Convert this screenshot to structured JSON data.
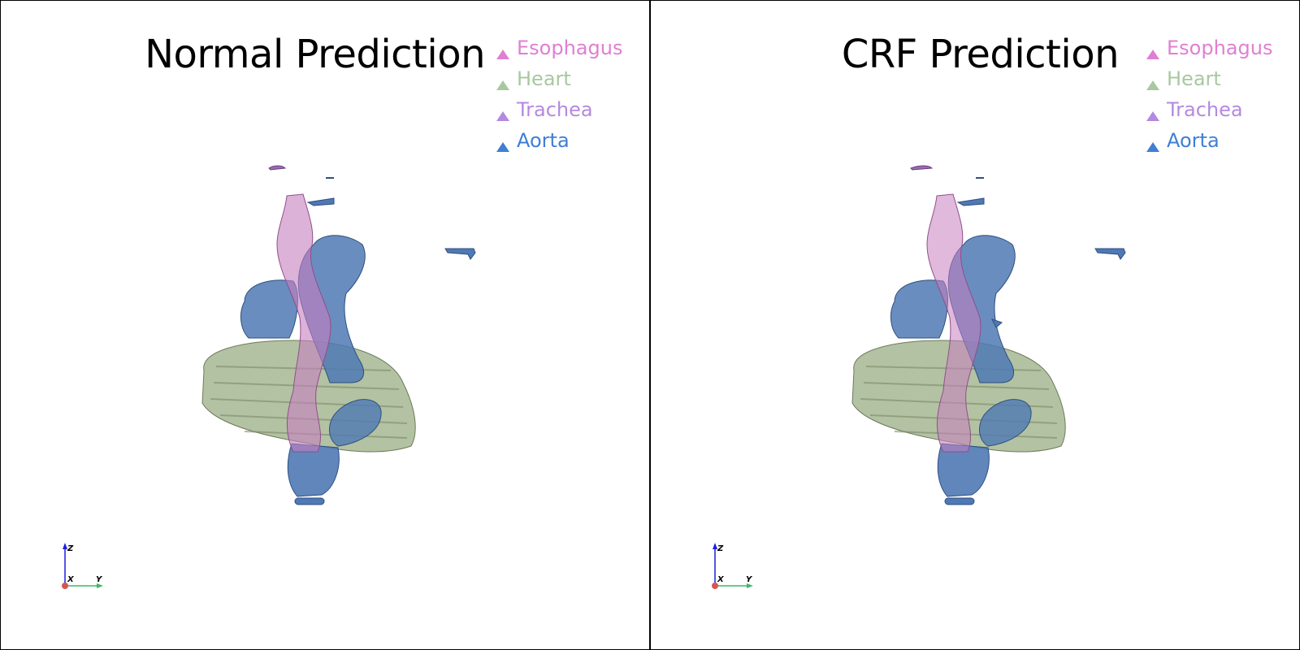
{
  "panels": [
    {
      "title": "Normal Prediction",
      "legend": [
        {
          "label": "Esophagus",
          "color": "#e07fd2"
        },
        {
          "label": "Heart",
          "color": "#a9c8a0"
        },
        {
          "label": "Trachea",
          "color": "#b48ae0"
        },
        {
          "label": "Aorta",
          "color": "#3f7fd4"
        }
      ],
      "axes": {
        "z": "Z",
        "x": "X",
        "y": "Y"
      }
    },
    {
      "title": "CRF Prediction",
      "legend": [
        {
          "label": "Esophagus",
          "color": "#e07fd2"
        },
        {
          "label": "Heart",
          "color": "#a9c8a0"
        },
        {
          "label": "Trachea",
          "color": "#b48ae0"
        },
        {
          "label": "Aorta",
          "color": "#3f7fd4"
        }
      ],
      "axes": {
        "z": "Z",
        "x": "X",
        "y": "Y"
      }
    }
  ],
  "colors": {
    "esophagus_mesh": "#c77fc0",
    "heart_mesh": "#a6b792",
    "aorta_mesh": "#4f79b4",
    "axis_x": "#d9534f",
    "axis_y": "#3cb96a",
    "axis_z": "#1e1ee0"
  }
}
